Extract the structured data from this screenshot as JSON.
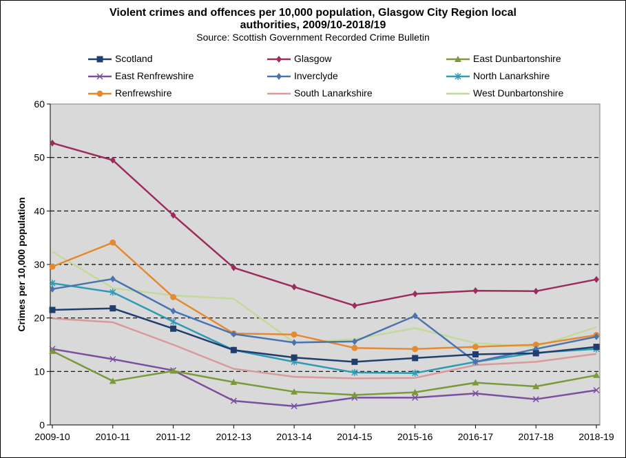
{
  "chart_data": {
    "type": "line",
    "title_line1": "Violent crimes and offences per 10,000 population, Glasgow City Region local",
    "title_line2": "authorities, 2009/10-2018/19",
    "subtitle": "Source: Scottish Government  Recorded Crime Bulletin",
    "xlabel": "",
    "ylabel": "Crimes per 10,000 population",
    "ylim": [
      0,
      60
    ],
    "yticks": [
      "0",
      "10",
      "20",
      "30",
      "40",
      "50",
      "60"
    ],
    "categories": [
      "2009-10",
      "2010-11",
      "2011-12",
      "2012-13",
      "2013-14",
      "2014-15",
      "2015-16",
      "2016-17",
      "2017-18",
      "2018-19"
    ],
    "grid": "horizontal dashed",
    "legend_position": "top",
    "series": [
      {
        "name": "Scotland",
        "color": "#1F3E6E",
        "marker": "square",
        "values": [
          21.5,
          21.8,
          18.0,
          14.0,
          12.6,
          11.8,
          12.5,
          13.2,
          13.4,
          14.6
        ]
      },
      {
        "name": "Glasgow",
        "color": "#9B2D5E",
        "marker": "diamond",
        "values": [
          52.7,
          49.5,
          39.2,
          29.4,
          25.8,
          22.3,
          24.5,
          25.1,
          25.0,
          27.2
        ]
      },
      {
        "name": "East Dunbartonshire",
        "color": "#7A9A3A",
        "marker": "triangle",
        "values": [
          13.8,
          8.2,
          10.1,
          8.0,
          6.2,
          5.6,
          6.1,
          7.9,
          7.2,
          9.3
        ]
      },
      {
        "name": "East Renfrewshire",
        "color": "#7B4FA0",
        "marker": "x",
        "values": [
          14.2,
          12.3,
          10.2,
          4.5,
          3.5,
          5.1,
          5.1,
          5.9,
          4.8,
          6.5
        ]
      },
      {
        "name": "Inverclyde",
        "color": "#4A74B0",
        "marker": "diamond",
        "values": [
          25.4,
          27.3,
          21.3,
          17.0,
          15.4,
          15.6,
          20.4,
          11.8,
          14.2,
          16.5
        ]
      },
      {
        "name": "North Lanarkshire",
        "color": "#2E9AB5",
        "marker": "star",
        "values": [
          26.5,
          24.8,
          19.3,
          14.0,
          11.8,
          9.8,
          9.7,
          11.8,
          13.5,
          14.2
        ]
      },
      {
        "name": "Renfrewshire",
        "color": "#E5892F",
        "marker": "circle",
        "values": [
          29.6,
          34.1,
          23.9,
          17.1,
          16.9,
          14.4,
          14.2,
          14.6,
          15.0,
          16.8
        ]
      },
      {
        "name": "South Lanarkshire",
        "color": "#D9999B",
        "marker": "none",
        "values": [
          19.9,
          19.2,
          15.0,
          10.5,
          9.0,
          8.7,
          8.8,
          11.2,
          11.8,
          13.3
        ]
      },
      {
        "name": "West Dunbartonshire",
        "color": "#C3D99A",
        "marker": "none",
        "values": [
          32.4,
          25.6,
          24.2,
          23.6,
          15.4,
          16.0,
          18.1,
          15.3,
          14.6,
          18.3
        ]
      }
    ]
  }
}
